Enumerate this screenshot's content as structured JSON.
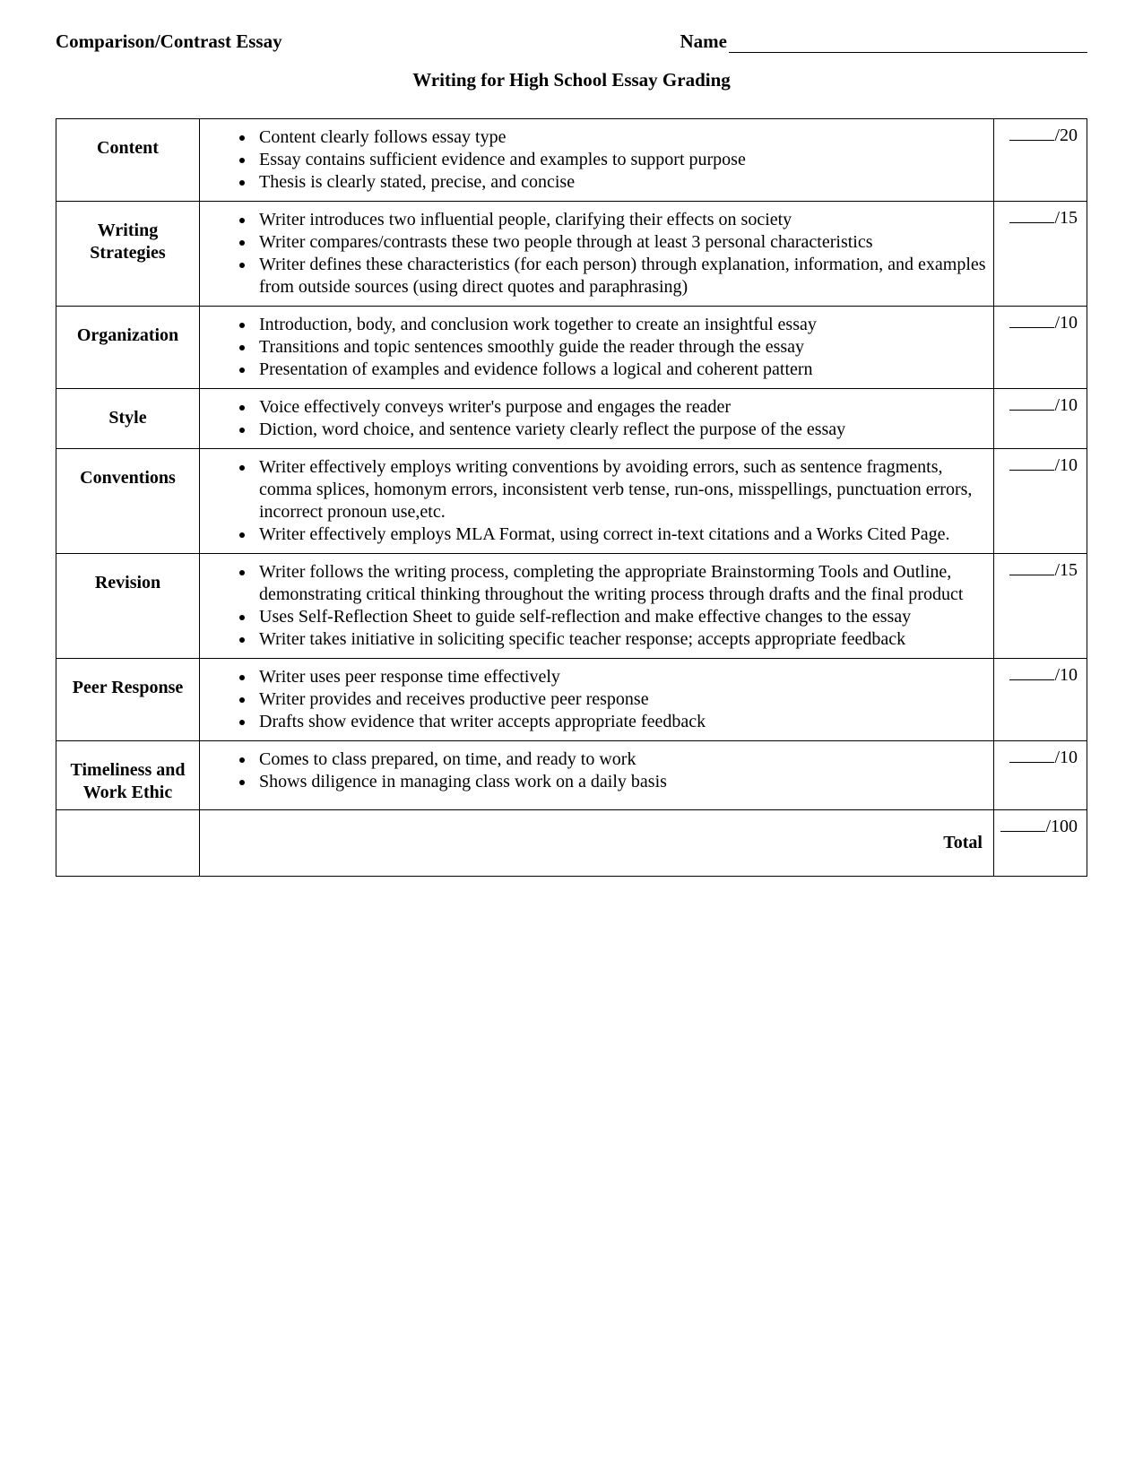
{
  "header": {
    "left": "Comparison/Contrast Essay",
    "name_label": "Name"
  },
  "title": "Writing for High School Essay Grading",
  "rows": [
    {
      "category": "Content",
      "criteria": [
        "Content clearly follows essay type",
        "Essay contains sufficient evidence and examples to support purpose",
        "Thesis is clearly stated, precise, and concise"
      ],
      "points": "/20"
    },
    {
      "category": "Writing Strategies",
      "criteria": [
        "Writer introduces two influential people, clarifying their effects on society",
        "Writer compares/contrasts these two people through at least 3 personal characteristics",
        "Writer defines these characteristics (for each person) through explanation, information, and examples from outside sources (using direct quotes and paraphrasing)"
      ],
      "points": "/15"
    },
    {
      "category": "Organization",
      "criteria": [
        "Introduction, body, and conclusion work together to create an insightful essay",
        "Transitions and topic sentences smoothly guide the reader through the essay",
        "Presentation of examples and evidence follows a logical and coherent pattern"
      ],
      "points": "/10"
    },
    {
      "category": "Style",
      "criteria": [
        "Voice effectively conveys writer's purpose and engages the reader",
        "Diction, word choice, and sentence variety clearly reflect the purpose of the essay"
      ],
      "points": "/10"
    },
    {
      "category": "Conventions",
      "criteria": [
        "Writer effectively employs writing conventions by avoiding errors, such as sentence fragments, comma splices, homonym errors, inconsistent verb tense, run-ons, misspellings, punctuation errors, incorrect pronoun use,etc.",
        "Writer effectively employs MLA Format, using correct in-text citations and a Works Cited Page."
      ],
      "points": "/10"
    },
    {
      "category": "Revision",
      "criteria": [
        "Writer follows the writing process, completing the appropriate Brainstorming Tools and Outline, demonstrating critical thinking throughout the writing process through drafts and the final product",
        "Uses Self-Reflection Sheet to guide self-reflection and make effective changes to the essay",
        "Writer takes initiative in soliciting specific teacher response; accepts appropriate feedback"
      ],
      "points": "/15"
    },
    {
      "category": "Peer Response",
      "criteria": [
        "Writer uses peer response time effectively",
        "Writer provides and receives productive peer response",
        "Drafts show evidence that writer accepts appropriate feedback"
      ],
      "points": "/10"
    },
    {
      "category": "Timeliness and Work Ethic",
      "criteria": [
        "Comes to class prepared, on time, and ready to work",
        "Shows diligence in managing class work on a daily basis"
      ],
      "points": "/10"
    }
  ],
  "total": {
    "label": "Total",
    "points": "/100"
  }
}
